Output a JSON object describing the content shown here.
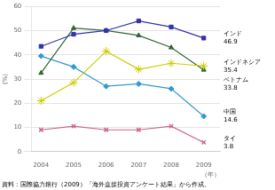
{
  "chart_data": {
    "type": "line",
    "x": [
      2004,
      2005,
      2006,
      2007,
      2008,
      2009
    ],
    "series": [
      {
        "name": "インド",
        "color": "#3333aa",
        "marker": "square",
        "values": [
          43.5,
          48.5,
          50.0,
          54.0,
          51.5,
          46.9
        ]
      },
      {
        "name": "インドネシア",
        "color": "#cccc00",
        "marker": "star",
        "values": [
          21.0,
          28.5,
          41.5,
          34.0,
          36.5,
          35.4
        ]
      },
      {
        "name": "ベトナム",
        "color": "#336633",
        "marker": "triangle",
        "values": [
          32.5,
          51.0,
          50.0,
          48.0,
          43.0,
          33.8
        ]
      },
      {
        "name": "中国",
        "color": "#3399cc",
        "marker": "diamond",
        "values": [
          39.5,
          35.0,
          27.0,
          28.0,
          26.0,
          14.6
        ]
      },
      {
        "name": "タイ",
        "color": "#cc6688",
        "marker": "x",
        "values": [
          9.0,
          10.5,
          9.0,
          9.0,
          10.5,
          3.8
        ]
      }
    ],
    "xlim": [
      2003.7,
      2009.5
    ],
    "xticks": [
      2004,
      2005,
      2006,
      2007,
      2008,
      2009
    ],
    "ylim": [
      0,
      60
    ],
    "yticks": [
      0,
      10,
      20,
      30,
      40,
      50,
      60
    ],
    "xlabel": "（年）",
    "ylabel": "(%)",
    "annotations": [
      "インド\n46.9",
      "インドネシア\n35.4",
      "ベトナム\n33.8",
      "中国\n14.6",
      "タイ\n3.8"
    ],
    "source": "資料：国際協力銀行（2009）「海外直接投資アンケート結果」から作成。",
    "grid": "y"
  }
}
